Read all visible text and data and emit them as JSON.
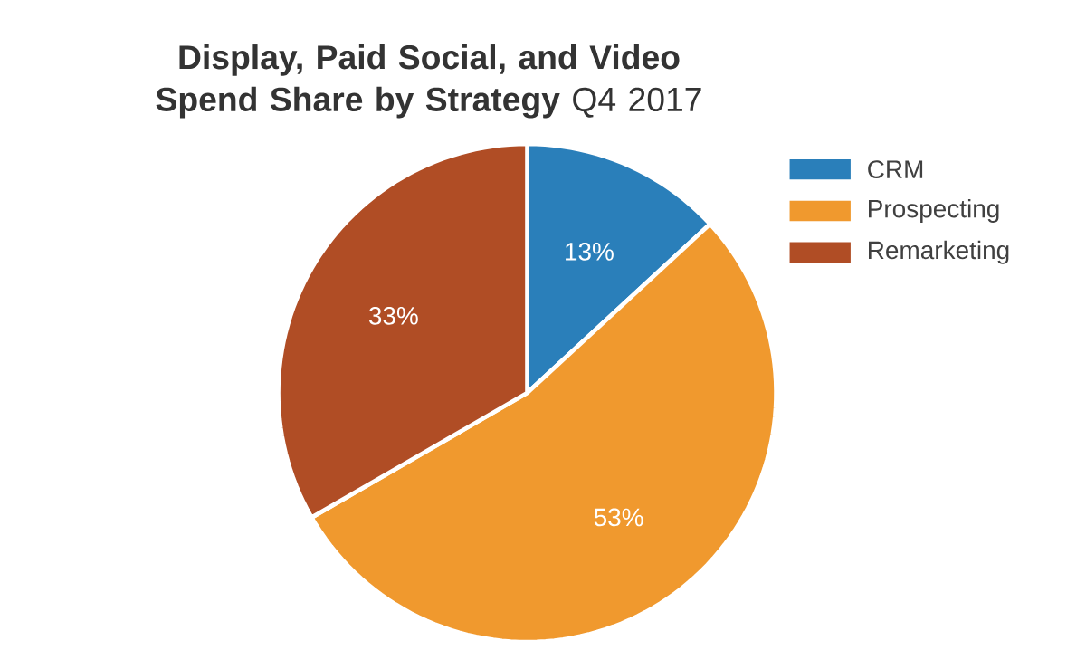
{
  "chart_data": {
    "type": "pie",
    "title": "**Display, Paid Social, and Video Spend Share by Strategy** Q4 2017",
    "categories": [
      "CRM",
      "Prospecting",
      "Remarketing"
    ],
    "values": [
      13,
      53,
      33
    ],
    "colors": [
      "#2a7fba",
      "#f0992e",
      "#b04d25"
    ],
    "value_labels": [
      "13%",
      "53%",
      "33%"
    ],
    "legend": "top right"
  }
}
